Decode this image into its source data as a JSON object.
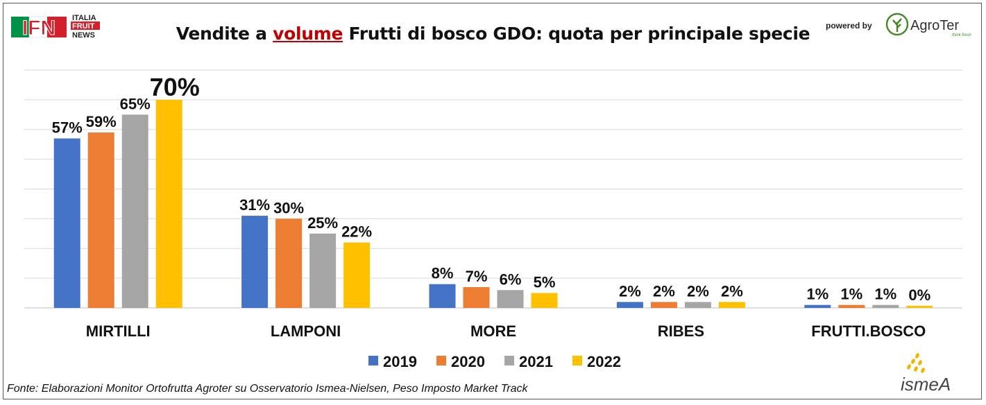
{
  "header": {
    "title_prefix": "Vendite a ",
    "title_highlight": "volume",
    "title_suffix": " Frutti di bosco GDO: quota per principale specie",
    "powered_by": "powered by"
  },
  "logos": {
    "ifn_main": "IFN",
    "ifn_line1": "ITALIA",
    "ifn_line2": "FRUIT",
    "ifn_line3": "NEWS",
    "agroter_name": "AgroTer",
    "agroter_tagline": "think fresh",
    "ismea_name": "ismeA"
  },
  "colors": {
    "2019": "#4472c4",
    "2020": "#ed7d31",
    "2021": "#a5a5a5",
    "2022": "#ffc000",
    "ifn_red": "#d4202a",
    "ifn_green": "#009246",
    "agroter_green": "#4a8a2a",
    "ismea_gold": "#f0b400"
  },
  "footer": {
    "source": "Fonte: Elaborazioni Monitor Ortofrutta Agroter su Osservatorio Ismea-Nielsen, Peso Imposto Market Track"
  },
  "chart_data": {
    "type": "bar",
    "categories": [
      "MIRTILLI",
      "LAMPONI",
      "MORE",
      "RIBES",
      "FRUTTI.BOSCO"
    ],
    "series": [
      {
        "name": "2019",
        "values": [
          57,
          31,
          8,
          2,
          1
        ],
        "labels": [
          "57%",
          "31%",
          "8%",
          "2%",
          "1%"
        ]
      },
      {
        "name": "2020",
        "values": [
          59,
          30,
          7,
          2,
          1
        ],
        "labels": [
          "59%",
          "30%",
          "7%",
          "2%",
          "1%"
        ]
      },
      {
        "name": "2021",
        "values": [
          65,
          25,
          6,
          2,
          1
        ],
        "labels": [
          "65%",
          "25%",
          "6%",
          "2%",
          "1%"
        ]
      },
      {
        "name": "2022",
        "values": [
          70,
          22,
          5,
          2,
          0
        ],
        "labels": [
          "70%",
          "22%",
          "5%",
          "2%",
          "0%"
        ]
      }
    ],
    "ylim": [
      0,
      80
    ],
    "grid": true,
    "legend": "bottom"
  }
}
